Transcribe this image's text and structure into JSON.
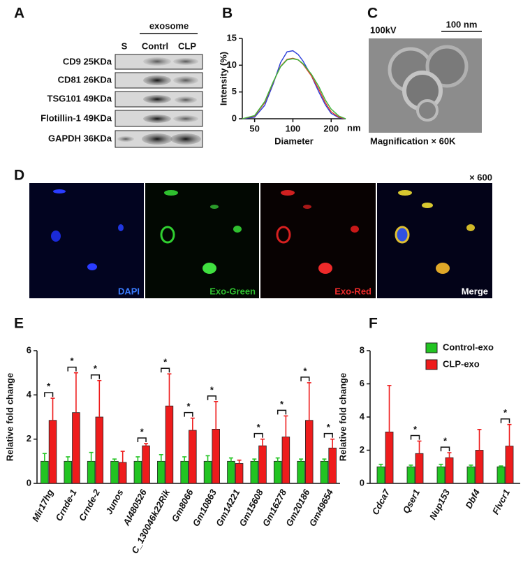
{
  "panel_labels": [
    "A",
    "B",
    "C",
    "D",
    "E",
    "F"
  ],
  "blot": {
    "header": "exosome",
    "lanes": [
      "S",
      "Contrl",
      "CLP"
    ],
    "rows": [
      "CD9 25KDa",
      "CD81 26KDa",
      "TSG101 49KDa",
      "Flotillin-1 49KDa",
      "GAPDH 36KDa"
    ]
  },
  "tem": {
    "voltage": "100kV",
    "scale": "100 nm",
    "caption": "Magnification × 60K"
  },
  "microscopy": {
    "magnification": "× 600",
    "channels": [
      "DAPI",
      "Exo-Green",
      "Exo-Red",
      "Merge"
    ]
  },
  "chart_data": [
    {
      "type": "line",
      "x_label": "Diameter",
      "x_unit": "nm",
      "y_label": "Intensity (%)",
      "xscale": "log",
      "x": [
        40,
        50,
        60,
        70,
        80,
        90,
        100,
        110,
        120,
        140,
        160,
        180,
        200,
        230,
        260
      ],
      "xlim": [
        40,
        260
      ],
      "xticks": [
        50,
        100,
        200
      ],
      "ylim": [
        0,
        15
      ],
      "yticks": [
        0,
        5,
        10,
        15
      ],
      "series": [
        {
          "color": "#2a3cd8",
          "values": [
            0,
            0.3,
            2.5,
            6.5,
            10.5,
            12.5,
            12.7,
            12,
            10.8,
            8,
            5,
            2.6,
            1,
            0.2,
            0
          ]
        },
        {
          "color": "#e23a2a",
          "values": [
            0,
            0.5,
            3,
            6.8,
            9.8,
            11.1,
            11.3,
            11,
            10.2,
            8,
            5.5,
            3,
            1.3,
            0.3,
            0
          ]
        },
        {
          "color": "#3ab83a",
          "values": [
            0,
            0.6,
            3.2,
            6.9,
            9.7,
            11,
            11.2,
            11,
            10.3,
            8.3,
            6,
            3.5,
            1.8,
            0.5,
            0
          ]
        }
      ]
    },
    {
      "type": "bar",
      "y_label": "Relative fold change",
      "categories": [
        "Mir17hg",
        "Crnde-1",
        "Crnde-2",
        "Junos",
        "AI480526",
        "C_130046k22Rik",
        "Gm8066",
        "Gm10863",
        "Gm14221",
        "Gm15608",
        "Gm16278",
        "Gm20186",
        "Gm49654"
      ],
      "ylim": [
        0,
        6
      ],
      "yticks": [
        0,
        2,
        4,
        6
      ],
      "significance": [
        "*",
        "*",
        "*",
        null,
        "*",
        "*",
        "*",
        "*",
        null,
        "*",
        "*",
        "*",
        "*"
      ],
      "series": [
        {
          "color": "#22c422",
          "values": [
            1,
            1,
            1,
            1,
            1,
            1,
            1,
            1,
            1,
            1,
            1,
            1,
            1
          ],
          "errors": [
            0.35,
            0.2,
            0.4,
            0.1,
            0.2,
            0.3,
            0.2,
            0.25,
            0.15,
            0.1,
            0.15,
            0.1,
            0.1
          ]
        },
        {
          "color": "#ee1c1c",
          "values": [
            2.85,
            3.2,
            3.0,
            0.95,
            1.7,
            3.5,
            2.4,
            2.45,
            0.9,
            1.7,
            2.1,
            2.85,
            1.6
          ],
          "errors": [
            1.0,
            1.8,
            1.65,
            0.5,
            0.1,
            1.45,
            0.55,
            1.25,
            0.15,
            0.3,
            0.95,
            1.7,
            0.4
          ]
        }
      ]
    },
    {
      "type": "bar",
      "y_label": "Relative fold change",
      "legend": "top-right",
      "categories": [
        "Cdca7",
        "Qser1",
        "Nup153",
        "Dbf4",
        "Flvcr1"
      ],
      "ylim": [
        0,
        8
      ],
      "yticks": [
        0,
        2,
        4,
        6,
        8
      ],
      "significance": [
        null,
        "*",
        "*",
        null,
        "*"
      ],
      "series": [
        {
          "name": "Control-exo",
          "color": "#22c422",
          "values": [
            1,
            1,
            1,
            1,
            1
          ],
          "errors": [
            0.15,
            0.1,
            0.15,
            0.1,
            0.05
          ]
        },
        {
          "name": "CLP-exo",
          "color": "#ee1c1c",
          "values": [
            3.1,
            1.8,
            1.55,
            2.0,
            2.25
          ],
          "errors": [
            2.8,
            0.75,
            0.3,
            1.25,
            1.3
          ]
        }
      ]
    }
  ]
}
